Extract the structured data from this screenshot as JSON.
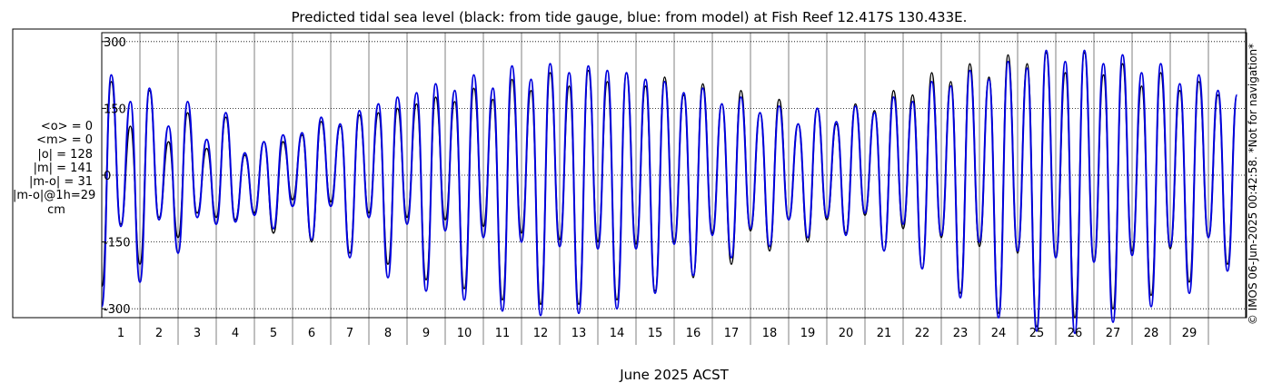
{
  "chart_data": {
    "type": "line",
    "title": "Predicted tidal sea level (black: from tide gauge, blue: from model) at Fish Reef 12.417S 130.433E.",
    "xlabel": "June 2025 ACST",
    "ylabel": "",
    "xlim": [
      0,
      30
    ],
    "ylim": [
      -320,
      320
    ],
    "y_ticks": [
      -300,
      -150,
      0,
      150,
      300
    ],
    "y_tick_labels": [
      "-300",
      "-150",
      "0",
      "150",
      "300"
    ],
    "x_tick_labels": [
      "1",
      "2",
      "3",
      "4",
      "5",
      "6",
      "7",
      "8",
      "9",
      "10",
      "11",
      "12",
      "13",
      "14",
      "15",
      "16",
      "17",
      "18",
      "19",
      "20",
      "21",
      "22",
      "23",
      "24",
      "25",
      "26",
      "27",
      "28",
      "29"
    ],
    "grid": true,
    "series": [
      {
        "name": "from tide gauge",
        "color": "#000000",
        "x": [
          0.0,
          0.25,
          0.5,
          0.75,
          1.0,
          1.25,
          1.5,
          1.75,
          2.0,
          2.25,
          2.5,
          2.75,
          3.0,
          3.25,
          3.5,
          3.75,
          4.0,
          4.25,
          4.5,
          4.75,
          5.0,
          5.25,
          5.5,
          5.75,
          6.0,
          6.25,
          6.5,
          6.75,
          7.0,
          7.25,
          7.5,
          7.75,
          8.0,
          8.25,
          8.5,
          8.75,
          9.0,
          9.25,
          9.5,
          9.75,
          10.0,
          10.25,
          10.5,
          10.75,
          11.0,
          11.25,
          11.5,
          11.75,
          12.0,
          12.25,
          12.5,
          12.75,
          13.0,
          13.25,
          13.5,
          13.75,
          14.0,
          14.25,
          14.5,
          14.75,
          15.0,
          15.25,
          15.5,
          15.75,
          16.0,
          16.25,
          16.5,
          16.75,
          17.0,
          17.25,
          17.5,
          17.75,
          18.0,
          18.25,
          18.5,
          18.75,
          19.0,
          19.25,
          19.5,
          19.75,
          20.0,
          20.25,
          20.5,
          20.75,
          21.0,
          21.25,
          21.5,
          21.75,
          22.0,
          22.25,
          22.5,
          22.75,
          23.0,
          23.25,
          23.5,
          23.75,
          24.0,
          24.25,
          24.5,
          24.75,
          25.0,
          25.25,
          25.5,
          25.75,
          26.0,
          26.25,
          26.5,
          26.75,
          27.0,
          27.25,
          27.5,
          27.75,
          28.0,
          28.25,
          28.5,
          28.75,
          29.0,
          29.25,
          29.5,
          29.75
        ],
        "y": [
          -250,
          210,
          -110,
          110,
          -200,
          190,
          -95,
          75,
          -140,
          140,
          -85,
          60,
          -95,
          130,
          -100,
          45,
          -85,
          75,
          -130,
          75,
          -55,
          90,
          -150,
          120,
          -60,
          110,
          -175,
          135,
          -85,
          140,
          -200,
          150,
          -95,
          160,
          -235,
          175,
          -100,
          165,
          -255,
          195,
          -115,
          170,
          -280,
          215,
          -130,
          190,
          -290,
          230,
          -145,
          200,
          -290,
          235,
          -150,
          210,
          -280,
          230,
          -155,
          200,
          -260,
          220,
          -150,
          180,
          -230,
          205,
          -130,
          160,
          -200,
          190,
          -125,
          140,
          -170,
          170,
          -100,
          115,
          -150,
          150,
          -100,
          115,
          -130,
          160,
          -90,
          145,
          -170,
          190,
          -120,
          180,
          -210,
          230,
          -140,
          210,
          -265,
          250,
          -160,
          220,
          -310,
          270,
          -175,
          250,
          -340,
          275,
          -185,
          230,
          -320,
          275,
          -195,
          225,
          -300,
          250,
          -170,
          200,
          -270,
          230,
          -165,
          190,
          -240,
          210,
          -140,
          180,
          -200,
          180
        ]
      },
      {
        "name": "from model",
        "color": "#0000dd",
        "x": [
          0.0,
          0.25,
          0.5,
          0.75,
          1.0,
          1.25,
          1.5,
          1.75,
          2.0,
          2.25,
          2.5,
          2.75,
          3.0,
          3.25,
          3.5,
          3.75,
          4.0,
          4.25,
          4.5,
          4.75,
          5.0,
          5.25,
          5.5,
          5.75,
          6.0,
          6.25,
          6.5,
          6.75,
          7.0,
          7.25,
          7.5,
          7.75,
          8.0,
          8.25,
          8.5,
          8.75,
          9.0,
          9.25,
          9.5,
          9.75,
          10.0,
          10.25,
          10.5,
          10.75,
          11.0,
          11.25,
          11.5,
          11.75,
          12.0,
          12.25,
          12.5,
          12.75,
          13.0,
          13.25,
          13.5,
          13.75,
          14.0,
          14.25,
          14.5,
          14.75,
          15.0,
          15.25,
          15.5,
          15.75,
          16.0,
          16.25,
          16.5,
          16.75,
          17.0,
          17.25,
          17.5,
          17.75,
          18.0,
          18.25,
          18.5,
          18.75,
          19.0,
          19.25,
          19.5,
          19.75,
          20.0,
          20.25,
          20.5,
          20.75,
          21.0,
          21.25,
          21.5,
          21.75,
          22.0,
          22.25,
          22.5,
          22.75,
          23.0,
          23.25,
          23.5,
          23.75,
          24.0,
          24.25,
          24.5,
          24.75,
          25.0,
          25.25,
          25.5,
          25.75,
          26.0,
          26.25,
          26.5,
          26.75,
          27.0,
          27.25,
          27.5,
          27.75,
          28.0,
          28.25,
          28.5,
          28.75,
          29.0,
          29.25,
          29.5,
          29.75
        ],
        "y": [
          -295,
          225,
          -115,
          165,
          -240,
          195,
          -100,
          110,
          -175,
          165,
          -95,
          80,
          -110,
          140,
          -105,
          50,
          -90,
          75,
          -120,
          90,
          -70,
          95,
          -145,
          130,
          -70,
          115,
          -185,
          145,
          -95,
          160,
          -230,
          175,
          -110,
          185,
          -260,
          205,
          -125,
          190,
          -280,
          225,
          -140,
          195,
          -305,
          245,
          -150,
          215,
          -315,
          250,
          -160,
          230,
          -310,
          245,
          -165,
          235,
          -300,
          230,
          -165,
          215,
          -265,
          210,
          -155,
          185,
          -225,
          195,
          -135,
          160,
          -185,
          175,
          -120,
          140,
          -160,
          155,
          -100,
          115,
          -140,
          150,
          -95,
          120,
          -135,
          155,
          -85,
          140,
          -170,
          175,
          -110,
          165,
          -210,
          210,
          -135,
          200,
          -275,
          235,
          -150,
          215,
          -320,
          255,
          -170,
          240,
          -350,
          280,
          -185,
          255,
          -355,
          280,
          -195,
          250,
          -330,
          270,
          -180,
          230,
          -295,
          250,
          -160,
          205,
          -265,
          225,
          -140,
          190,
          -215,
          180
        ]
      }
    ]
  },
  "stats": {
    "lines": [
      "<o> = 0",
      "<m> = 0",
      "|o| = 128",
      "|m| = 141",
      "|m-o| = 31",
      "|m-o|@1h=29",
      "cm"
    ]
  },
  "copyright": "© IMOS 06-Jun-2025 00:42:58. *Not for navigation*"
}
